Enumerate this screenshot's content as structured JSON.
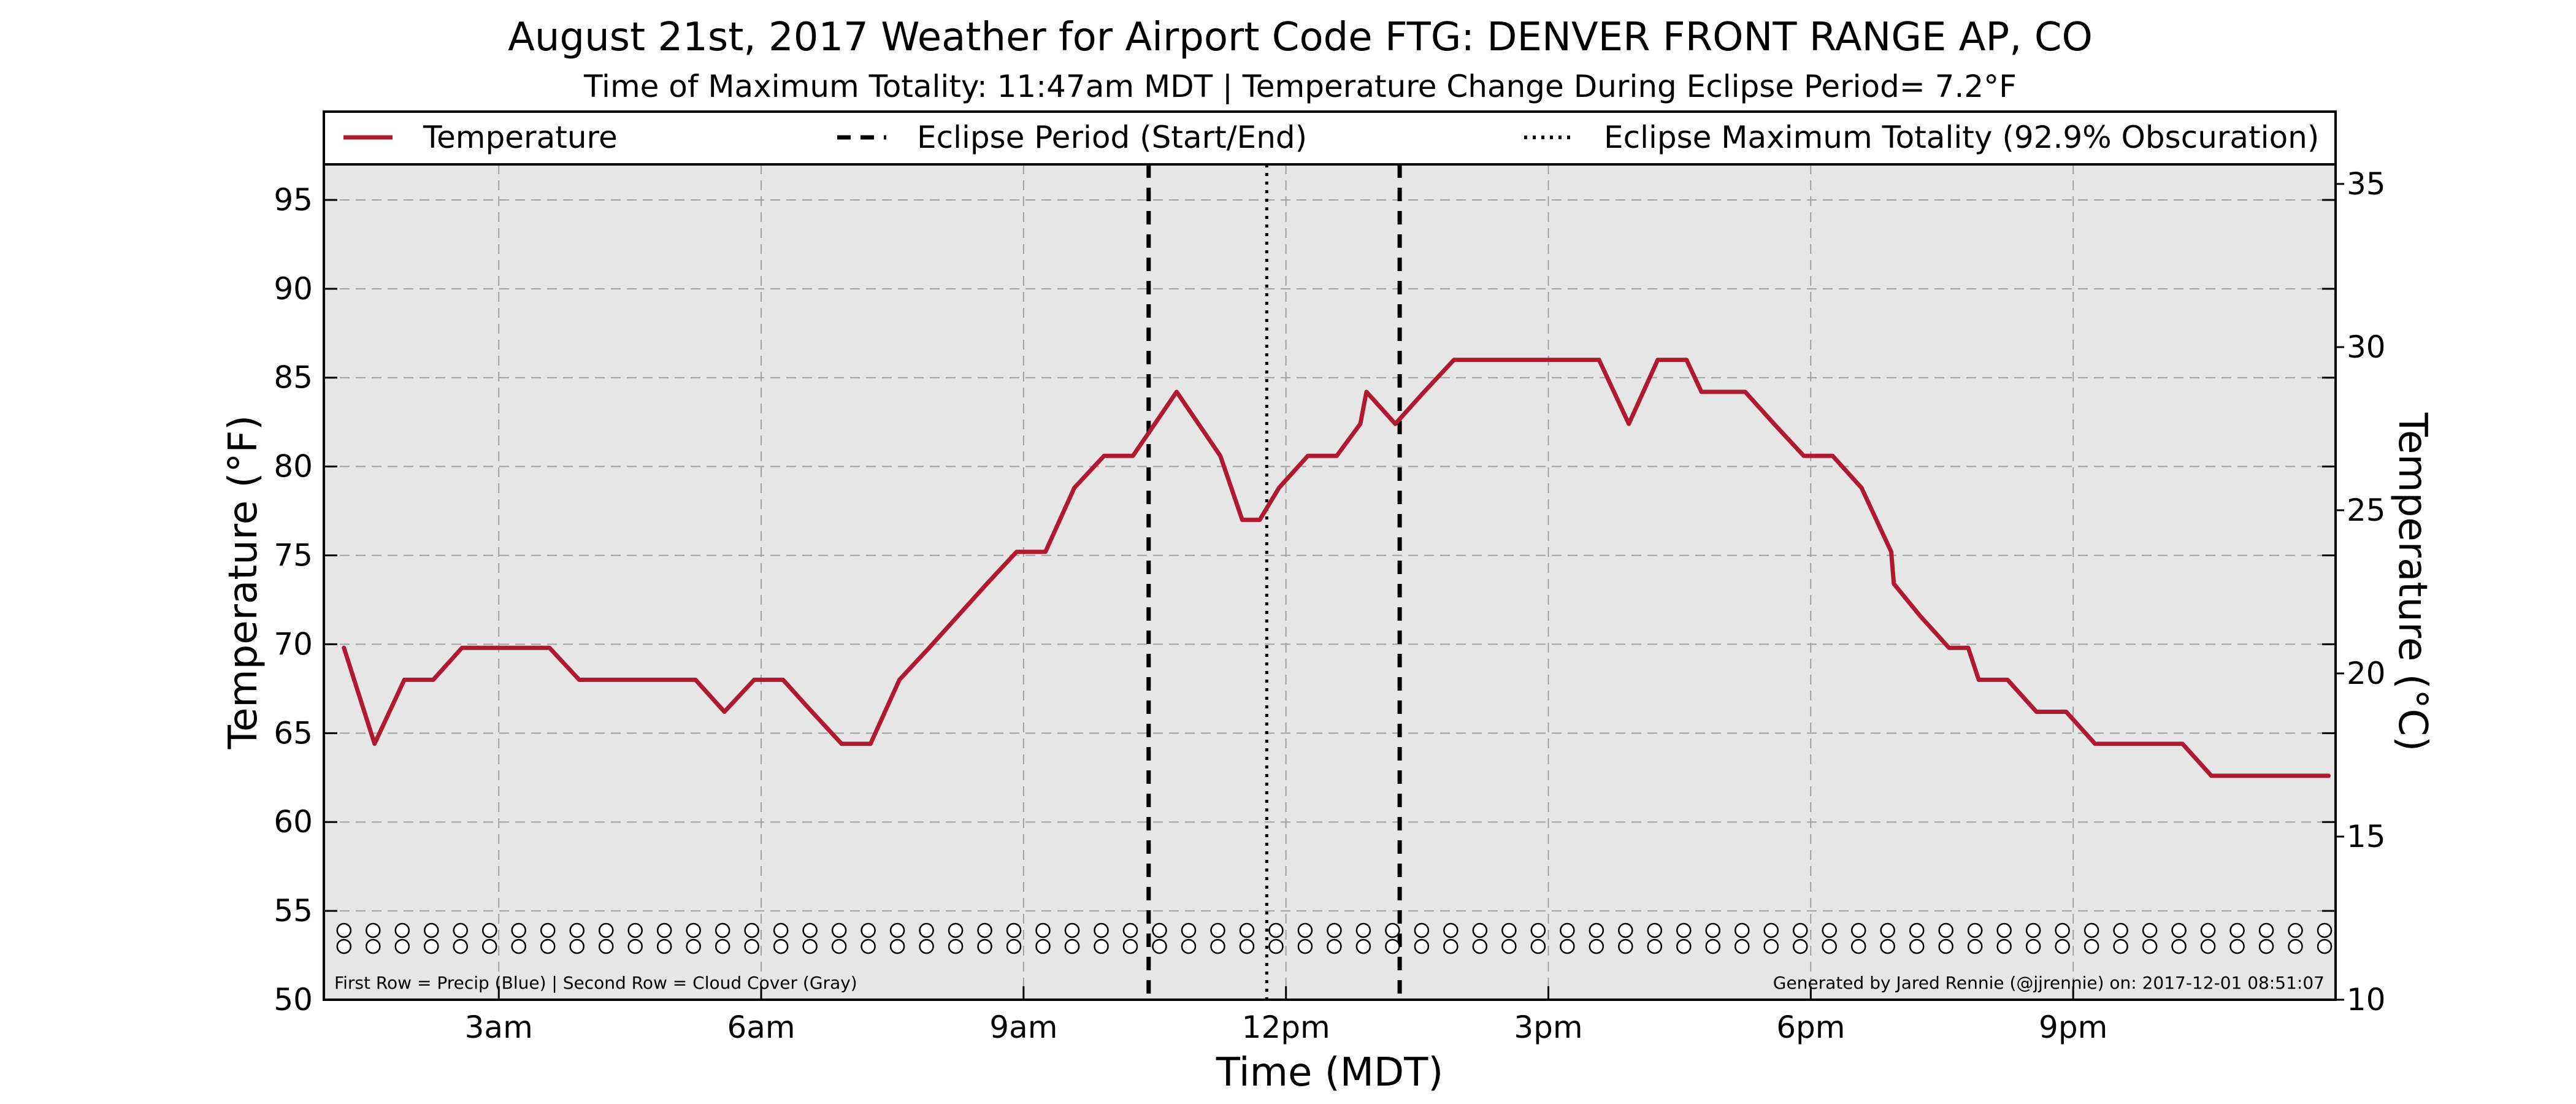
{
  "chart_data": {
    "type": "line",
    "title": "August 21st, 2017 Weather for Airport Code FTG: DENVER FRONT RANGE AP, CO",
    "subtitle": "Time of Maximum Totality: 11:47am MDT | Temperature Change During Eclipse Period= 7.2°F",
    "xlabel": "Time (MDT)",
    "ylabel": "Temperature (°F)",
    "ylabel_right": "Temperature (°C)",
    "xlim": [
      1.0,
      24.0
    ],
    "ylim": [
      50,
      97
    ],
    "ylim_right": [
      10,
      35.6
    ],
    "x_ticks": [
      {
        "hour": 3,
        "label": "3am"
      },
      {
        "hour": 6,
        "label": "6am"
      },
      {
        "hour": 9,
        "label": "9am"
      },
      {
        "hour": 12,
        "label": "12pm"
      },
      {
        "hour": 15,
        "label": "3pm"
      },
      {
        "hour": 18,
        "label": "6pm"
      },
      {
        "hour": 21,
        "label": "9pm"
      }
    ],
    "y_ticks": [
      50,
      55,
      60,
      65,
      70,
      75,
      80,
      85,
      90,
      95
    ],
    "y_ticks_right": [
      10,
      15,
      20,
      25,
      30,
      35
    ],
    "grid": true,
    "legend_position": "top",
    "legend": {
      "temperature": "Temperature",
      "eclipse_period": "Eclipse Period (Start/End)",
      "eclipse_max": "Eclipse Maximum Totality (92.9% Obscuration)"
    },
    "colors": {
      "temperature": "#b01a2e",
      "plot_background": "#e6e6e6",
      "grid": "#a0a0a0",
      "markers": "#000000"
    },
    "eclipse": {
      "start_hour": 10.43,
      "end_hour": 13.3,
      "max_hour": 11.78
    },
    "series": [
      {
        "name": "Temperature",
        "x": [
          1.23,
          1.58,
          1.92,
          2.25,
          2.58,
          2.92,
          3.25,
          3.58,
          3.92,
          4.25,
          4.58,
          4.92,
          5.25,
          5.58,
          5.92,
          6.25,
          6.58,
          6.92,
          7.25,
          7.58,
          7.92,
          8.25,
          8.58,
          8.92,
          9.25,
          9.58,
          9.92,
          10.25,
          10.5,
          10.75,
          11.0,
          11.25,
          11.5,
          11.7,
          11.92,
          12.25,
          12.58,
          12.85,
          12.92,
          13.25,
          13.58,
          13.92,
          14.25,
          14.58,
          14.92,
          15.25,
          15.58,
          15.92,
          16.25,
          16.58,
          16.75,
          16.92,
          17.25,
          17.58,
          17.92,
          18.0,
          18.25,
          18.58,
          18.92,
          18.95,
          19.25,
          19.58,
          19.8,
          19.92,
          20.25,
          20.58,
          20.92,
          21.25,
          21.58,
          21.92,
          22.25,
          22.58,
          22.92,
          23.25,
          23.58,
          23.92
        ],
        "y": [
          69.8,
          64.4,
          68.0,
          68.0,
          69.8,
          69.8,
          69.8,
          69.8,
          68.0,
          68.0,
          68.0,
          68.0,
          68.0,
          66.2,
          68.0,
          68.0,
          66.2,
          64.4,
          64.4,
          68.0,
          69.8,
          71.6,
          73.4,
          75.2,
          75.2,
          78.8,
          80.6,
          80.6,
          82.4,
          84.2,
          82.4,
          80.6,
          77.0,
          77.0,
          78.8,
          80.6,
          80.6,
          82.4,
          84.2,
          82.4,
          84.2,
          86.0,
          86.0,
          86.0,
          86.0,
          86.0,
          86.0,
          82.4,
          86.0,
          86.0,
          84.2,
          84.2,
          84.2,
          82.4,
          80.6,
          80.6,
          80.6,
          78.8,
          75.2,
          73.4,
          71.6,
          69.8,
          69.8,
          68.0,
          68.0,
          66.2,
          66.2,
          64.4,
          64.4,
          64.4,
          64.4,
          62.6,
          62.6,
          62.6,
          62.6,
          62.6
        ]
      }
    ],
    "marker_rows": {
      "interval_hours": 0.333,
      "precip_row_y": 53.9,
      "cloud_row_y": 53.0,
      "open_circle_color": "#ffffff",
      "filled_circle_color": "#777777",
      "row1_label": "First Row = Precip (Blue) | Second Row = Cloud Cover (Gray)",
      "credit": "Generated by Jared Rennie (@jjrennie) on: 2017-12-01 08:51:07"
    }
  }
}
